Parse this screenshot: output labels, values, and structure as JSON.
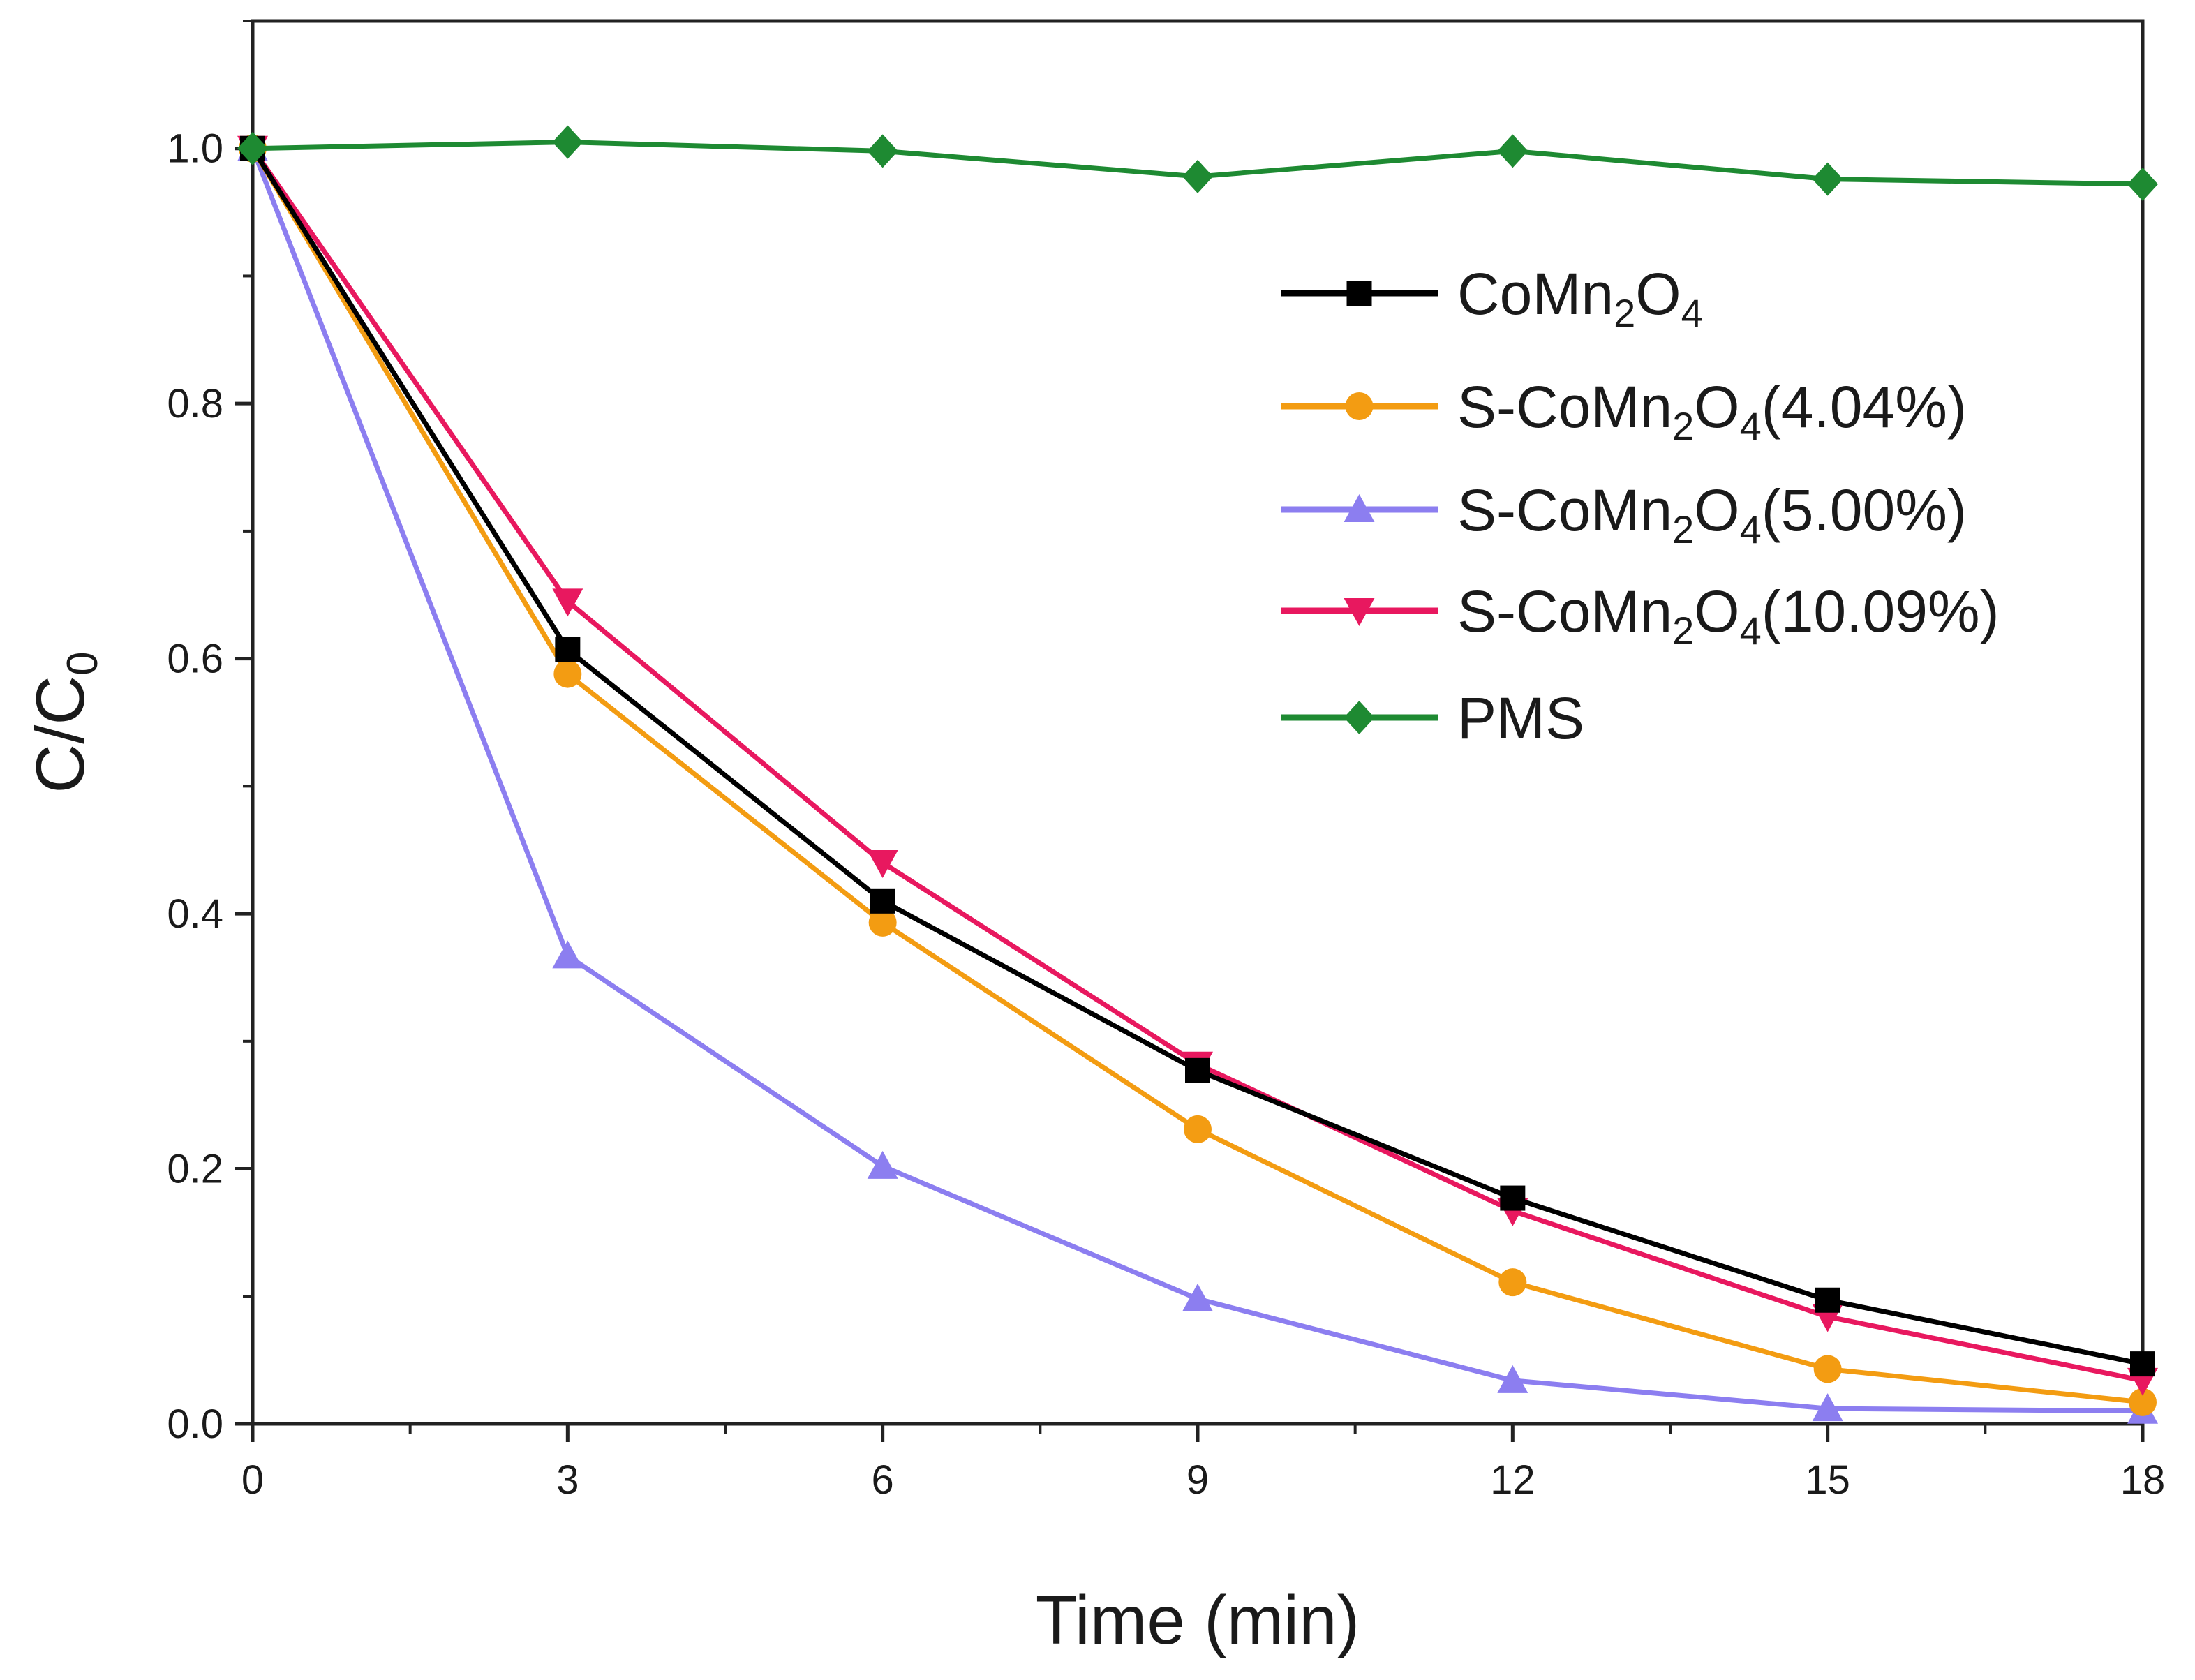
{
  "chart_data": {
    "type": "line",
    "title": "",
    "xlabel": "Time (min)",
    "ylabel": {
      "main": "C/C",
      "sub": "0"
    },
    "xlim": [
      0,
      18
    ],
    "ylim": [
      0,
      1.1
    ],
    "x_ticks": [
      0,
      3,
      6,
      9,
      12,
      15,
      18
    ],
    "x_tick_labels": [
      "0",
      "3",
      "6",
      "9",
      "12",
      "15",
      "18"
    ],
    "y_ticks": [
      0,
      0.2,
      0.4,
      0.6,
      0.8,
      1.0
    ],
    "y_tick_labels": [
      "0.0",
      "0.2",
      "0.4",
      "0.6",
      "0.8",
      "1.0"
    ],
    "grid": false,
    "legend_position": "top-right",
    "x": [
      0,
      3,
      6,
      9,
      12,
      15,
      18
    ],
    "series": [
      {
        "name": "CoMn2O4",
        "label_parts": [
          [
            "CoMn",
            false
          ],
          [
            "2",
            true
          ],
          [
            "O",
            false
          ],
          [
            "4",
            true
          ]
        ],
        "color": "#000000",
        "marker": "square",
        "values": [
          1.0,
          0.607,
          0.41,
          0.277,
          0.177,
          0.097,
          0.047
        ]
      },
      {
        "name": "S-CoMn2O4(4.04%)",
        "label_parts": [
          [
            "S-CoMn",
            false
          ],
          [
            "2",
            true
          ],
          [
            "O",
            false
          ],
          [
            "4",
            true
          ],
          [
            "(4.04%)",
            false
          ]
        ],
        "color": "#f39c12",
        "marker": "circle",
        "values": [
          1.0,
          0.588,
          0.393,
          0.231,
          0.111,
          0.043,
          0.017
        ]
      },
      {
        "name": "S-CoMn2O4(5.00%)",
        "label_parts": [
          [
            "S-CoMn",
            false
          ],
          [
            "2",
            true
          ],
          [
            "O",
            false
          ],
          [
            "4",
            true
          ],
          [
            "(5.00%)",
            false
          ]
        ],
        "color": "#8c7ef0",
        "marker": "triangle-up",
        "values": [
          1.0,
          0.367,
          0.202,
          0.098,
          0.034,
          0.012,
          0.01
        ]
      },
      {
        "name": "S-CoMn2O4(10.09%)",
        "label_parts": [
          [
            "S-CoMn",
            false
          ],
          [
            "2",
            true
          ],
          [
            "O",
            false
          ],
          [
            "4",
            true
          ],
          [
            "(10.09%)",
            false
          ]
        ],
        "color": "#e8185f",
        "marker": "triangle-down",
        "values": [
          1.0,
          0.645,
          0.44,
          0.282,
          0.167,
          0.084,
          0.034
        ]
      },
      {
        "name": "PMS",
        "label_parts": [
          [
            "PMS",
            false
          ]
        ],
        "color": "#1e8a32",
        "marker": "diamond",
        "values": [
          1.0,
          1.005,
          0.998,
          0.978,
          0.998,
          0.976,
          0.972
        ]
      }
    ]
  }
}
